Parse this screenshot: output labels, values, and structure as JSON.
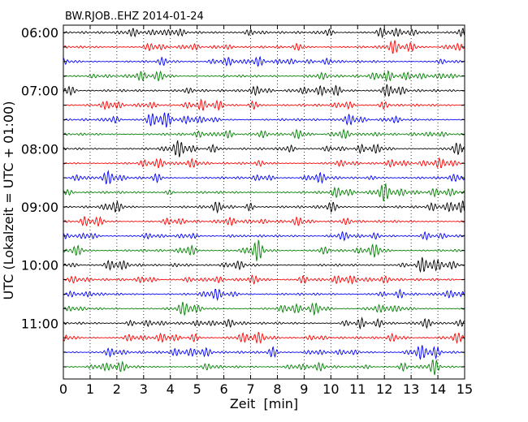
{
  "chart_data": {
    "type": "line",
    "title": "BW.RJOB..EHZ 2014-01-24",
    "xlabel": "Zeit  [min]",
    "ylabel": "UTC (Lokalzeit = UTC + 01:00)",
    "xlim": [
      0,
      15
    ],
    "x_ticks": [
      "0",
      "1",
      "2",
      "3",
      "4",
      "5",
      "6",
      "7",
      "8",
      "9",
      "10",
      "11",
      "12",
      "13",
      "14",
      "15"
    ],
    "y_tick_labels": [
      "06:00",
      "07:00",
      "08:00",
      "09:00",
      "10:00",
      "11:00"
    ],
    "trace_interval_minutes": 15,
    "trace_count": 24,
    "first_trace_start": "06:00",
    "trace_colors": [
      "#000000",
      "#ff0000",
      "#0000ff",
      "#008000"
    ],
    "vertical_grid": "dotted",
    "legend": "none"
  }
}
